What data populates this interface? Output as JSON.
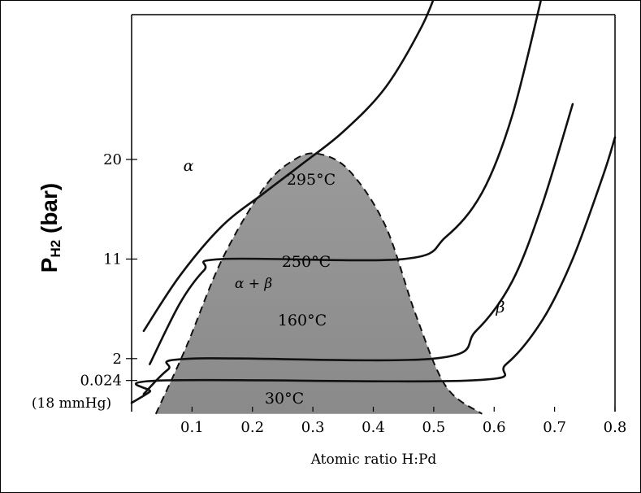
{
  "chart_data": {
    "type": "line",
    "title": "",
    "xlabel": "Atomic ratio H:Pd",
    "ylabel": {
      "main": "P",
      "sub": "H2",
      "rest": " (bar)"
    },
    "xlim": [
      0.0,
      0.8
    ],
    "x_ticks": [
      "0.1",
      "0.2",
      "0.3",
      "0.4",
      "0.5",
      "0.6",
      "0.7",
      "0.8"
    ],
    "y_ticks": [
      {
        "label": "20"
      },
      {
        "label": "11"
      },
      {
        "label": "2"
      },
      {
        "label": "0.024"
      }
    ],
    "y_note": "(18 mmHg)",
    "phase_labels": {
      "alpha": "α",
      "alpha_beta": "α + β",
      "beta": "β"
    },
    "series": [
      {
        "name": "295°C",
        "points": [
          [
            0.02,
            4.5
          ],
          [
            0.08,
            9.5
          ],
          [
            0.15,
            14.0
          ],
          [
            0.22,
            17.0
          ],
          [
            0.28,
            19.5
          ],
          [
            0.35,
            22.5
          ],
          [
            0.42,
            26.5
          ],
          [
            0.48,
            32.0
          ],
          [
            0.51,
            36.0
          ]
        ]
      },
      {
        "name": "250°C",
        "points": [
          [
            0.03,
            1.5
          ],
          [
            0.08,
            7.0
          ],
          [
            0.12,
            10.0
          ],
          [
            0.15,
            11.0
          ],
          [
            0.45,
            11.0
          ],
          [
            0.52,
            13.0
          ],
          [
            0.58,
            17.0
          ],
          [
            0.63,
            24.0
          ],
          [
            0.68,
            35.0
          ]
        ]
      },
      {
        "name": "160°C",
        "points": [
          [
            0.02,
            -1.2
          ],
          [
            0.06,
            1.0
          ],
          [
            0.1,
            2.0
          ],
          [
            0.5,
            2.0
          ],
          [
            0.57,
            4.5
          ],
          [
            0.63,
            9.0
          ],
          [
            0.68,
            16.0
          ],
          [
            0.73,
            25.0
          ]
        ]
      },
      {
        "name": "30°C",
        "points": [
          [
            0.0,
            -2.0
          ],
          [
            0.03,
            -1.0
          ],
          [
            0.05,
            0.024
          ],
          [
            0.56,
            0.024
          ],
          [
            0.62,
            1.5
          ],
          [
            0.68,
            5.5
          ],
          [
            0.73,
            11.0
          ],
          [
            0.78,
            18.5
          ],
          [
            0.8,
            22.0
          ]
        ]
      }
    ],
    "two_phase_dome": {
      "points": [
        [
          0.04,
          -3.0
        ],
        [
          0.09,
          3.0
        ],
        [
          0.15,
          11.0
        ],
        [
          0.22,
          17.5
        ],
        [
          0.27,
          20.0
        ],
        [
          0.31,
          20.5
        ],
        [
          0.36,
          19.0
        ],
        [
          0.42,
          14.0
        ],
        [
          0.47,
          6.0
        ],
        [
          0.52,
          -0.5
        ],
        [
          0.58,
          -3.0
        ]
      ]
    },
    "grid": false,
    "legend": "none"
  }
}
